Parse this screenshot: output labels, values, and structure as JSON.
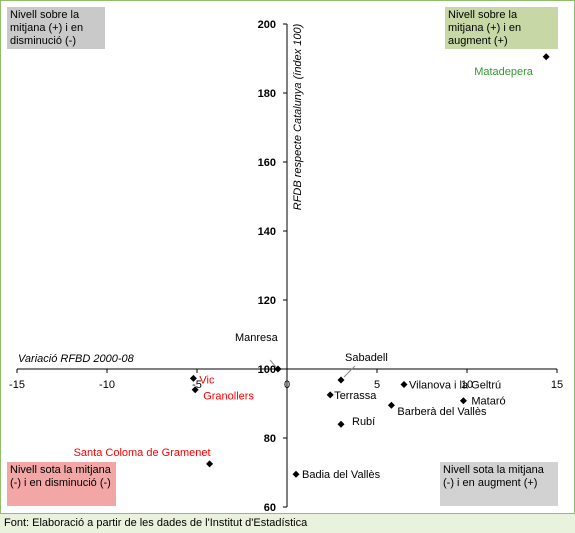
{
  "footer": {
    "source": "Font: Elaboració a partir de les dades de l'Institut d'Estadística"
  },
  "quadrants": {
    "top_left": "Nivell sobre la mitjana (+) i en disminució (-)",
    "top_right": "Nivell sobre la mitjana (+) i en augment (+)",
    "bottom_left": "Nivell sota la mitjana (-) i en disminució (-)",
    "bottom_right": "Nivell sota la mitjana (-) i en augment (+)"
  },
  "colors": {
    "red": "#ff0000",
    "green": "#339933",
    "black": "#000000"
  },
  "chart_data": {
    "type": "scatter",
    "title": "",
    "xlabel": "Variació RFBD 2000-08",
    "ylabel": "RFDB respecte Catalunya (índex 100)",
    "xlim": [
      -15,
      15
    ],
    "ylim": [
      60,
      200
    ],
    "x_ticks": [
      -15,
      -10,
      -5,
      0,
      5,
      10,
      15
    ],
    "x_tick_labels": [
      "-15",
      "-10",
      "-5",
      "0",
      "5",
      "10",
      "15"
    ],
    "y_ticks": [
      60,
      80,
      100,
      120,
      140,
      160,
      180,
      200
    ],
    "y_tick_labels": [
      "60",
      "80",
      "100",
      "120",
      "140",
      "160",
      "180",
      "200"
    ],
    "grid": false,
    "points": [
      {
        "label": "Matadepera",
        "x": 14.4,
        "y": 190.5,
        "color": "#339933"
      },
      {
        "label": "Manresa",
        "x": -0.5,
        "y": 100.0,
        "color": "#000000"
      },
      {
        "label": "Sabadell",
        "x": 3.0,
        "y": 96.8,
        "color": "#000000"
      },
      {
        "label": "Vilanova i la Geltrú",
        "x": 6.5,
        "y": 95.5,
        "color": "#000000"
      },
      {
        "label": "Vic",
        "x": -5.2,
        "y": 97.3,
        "color": "#ff0000"
      },
      {
        "label": "Granollers",
        "x": -5.1,
        "y": 94.0,
        "color": "#ff0000"
      },
      {
        "label": "Terrassa",
        "x": 2.4,
        "y": 92.5,
        "color": "#000000"
      },
      {
        "label": "Mataró",
        "x": 9.8,
        "y": 90.8,
        "color": "#000000"
      },
      {
        "label": "Barberà del Vallès",
        "x": 5.8,
        "y": 89.5,
        "color": "#000000"
      },
      {
        "label": "Rubí",
        "x": 3.0,
        "y": 84.0,
        "color": "#000000"
      },
      {
        "label": "Santa Coloma de Gramenet",
        "x": -4.3,
        "y": 72.5,
        "color": "#ff0000"
      },
      {
        "label": "Badia del Vallès",
        "x": 0.5,
        "y": 69.5,
        "color": "#000000"
      }
    ]
  }
}
